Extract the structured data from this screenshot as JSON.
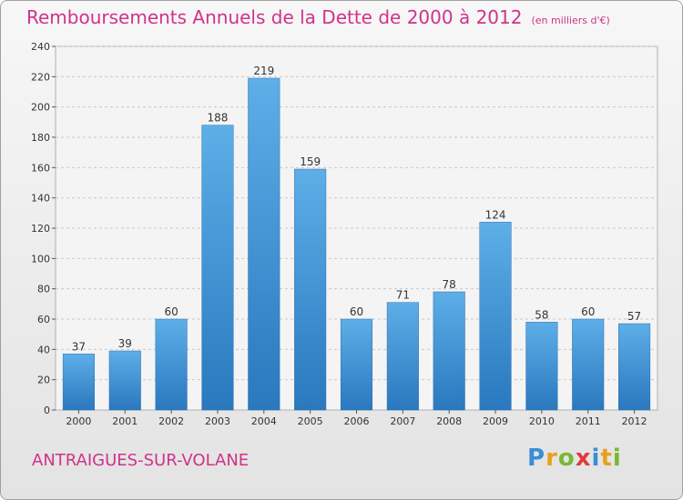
{
  "chart_data": {
    "type": "bar",
    "title": "Remboursements Annuels de la Dette de 2000 à 2012",
    "subtitle": "(en milliers d'€)",
    "categories": [
      "2000",
      "2001",
      "2002",
      "2003",
      "2004",
      "2005",
      "2006",
      "2007",
      "2008",
      "2009",
      "2010",
      "2011",
      "2012"
    ],
    "values": [
      37,
      39,
      60,
      188,
      219,
      159,
      60,
      71,
      78,
      124,
      58,
      60,
      57
    ],
    "ylim": [
      0,
      240
    ],
    "yticks": [
      0,
      20,
      40,
      60,
      80,
      100,
      120,
      140,
      160,
      180,
      200,
      220,
      240
    ],
    "grid": true,
    "bar_color": "#3a8ed4",
    "title_color": "#d0338a"
  },
  "commune": "ANTRAIGUES-SUR-VOLANE",
  "logo": {
    "text": "Proxiti",
    "letters": [
      {
        "ch": "P",
        "color": "#3a8ed4"
      },
      {
        "ch": "r",
        "color": "#e8a020"
      },
      {
        "ch": "o",
        "color": "#7ab834"
      },
      {
        "ch": "x",
        "color": "#e03a3a"
      },
      {
        "ch": "i",
        "color": "#3a8ed4"
      },
      {
        "ch": "t",
        "color": "#e8a020"
      },
      {
        "ch": "i",
        "color": "#7ab834"
      }
    ]
  }
}
